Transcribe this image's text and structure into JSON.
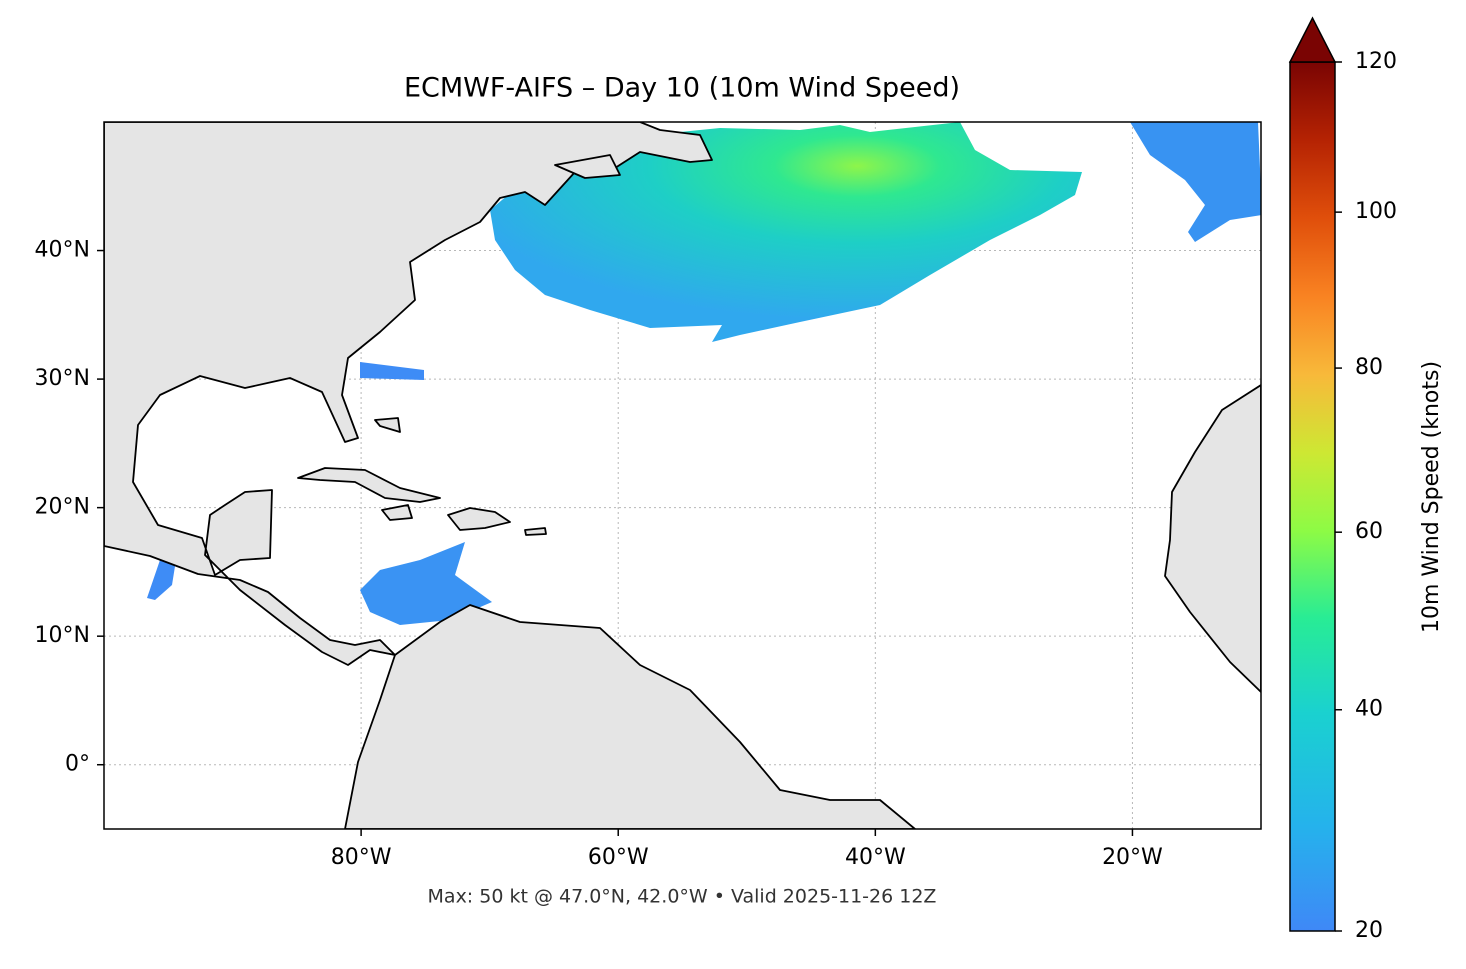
{
  "chart_data": {
    "type": "map",
    "title": "ECMWF-AIFS – Day 10 (10m Wind Speed)",
    "note": "Max: 50 kt @ 47.0°N, 42.0°W • Valid 2025-11-26 12Z",
    "xlim": [
      -100,
      -10
    ],
    "ylim": [
      -5,
      50
    ],
    "xticks": [
      {
        "value": -80,
        "label": "80°W"
      },
      {
        "value": -60,
        "label": "60°W"
      },
      {
        "value": -40,
        "label": "40°W"
      },
      {
        "value": -20,
        "label": "20°W"
      }
    ],
    "yticks": [
      {
        "value": 0,
        "label": "0°"
      },
      {
        "value": 10,
        "label": "10°N"
      },
      {
        "value": 20,
        "label": "20°N"
      },
      {
        "value": 30,
        "label": "30°N"
      },
      {
        "value": 40,
        "label": "40°N"
      }
    ],
    "grid": true,
    "colorbar": {
      "label": "10m Wind Speed (knots)",
      "lim": [
        20,
        120
      ],
      "ticks": [
        20,
        40,
        60,
        80,
        100,
        120
      ],
      "gamma": 0.85
    }
  }
}
